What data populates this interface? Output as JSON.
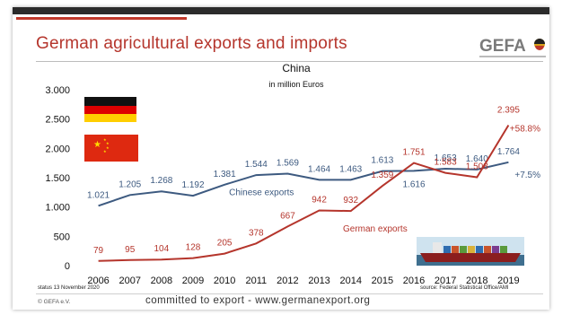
{
  "slide": {
    "title": "German agricultural exports and imports",
    "logo_text": "GEFA",
    "status": "status 13 November 2020",
    "source": "source: Federal Statistical Office/AMI",
    "copyright": "© GEFA e.V.",
    "slogan": "committed to export - www.germanexport.org"
  },
  "chart_data": {
    "type": "line",
    "title": "China",
    "subtitle": "in million Euros",
    "x": [
      "2006",
      "2007",
      "2008",
      "2009",
      "2010",
      "2011",
      "2012",
      "2013",
      "2014",
      "2015",
      "2016",
      "2017",
      "2018",
      "2019"
    ],
    "ylim": [
      0,
      3000
    ],
    "yticks": [
      0,
      500,
      1000,
      1500,
      2000,
      2500,
      3000
    ],
    "ytick_labels": [
      "0",
      "500",
      "1.000",
      "1.500",
      "2.000",
      "2.500",
      "3.000"
    ],
    "grid": false,
    "series": [
      {
        "name": "Chinese exports",
        "color": "#3d5a80",
        "values": [
          1021,
          1205,
          1268,
          1192,
          1381,
          1544,
          1569,
          1464,
          1463,
          1613,
          1616,
          1653,
          1640,
          1764
        ],
        "labels": [
          "1.021",
          "1.205",
          "1.268",
          "1.192",
          "1.381",
          "1.544",
          "1.569",
          "1.464",
          "1.463",
          "1.613",
          "1.616",
          "1.653",
          "1.640",
          "1.764"
        ],
        "change": "+7.5%"
      },
      {
        "name": "German exports",
        "color": "#b5352c",
        "values": [
          79,
          95,
          104,
          128,
          205,
          378,
          667,
          942,
          932,
          1359,
          1751,
          1583,
          1508,
          2395
        ],
        "labels": [
          "79",
          "95",
          "104",
          "128",
          "205",
          "378",
          "667",
          "942",
          "932",
          "1.359",
          "1.751",
          "1.583",
          "1.508",
          "2.395"
        ],
        "change": "+58.8%"
      }
    ],
    "flags": [
      "germany-flag",
      "china-flag"
    ],
    "image": "container-ship"
  }
}
